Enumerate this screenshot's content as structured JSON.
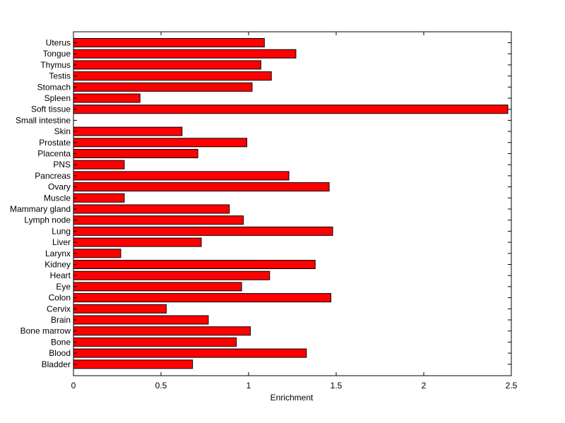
{
  "chart_data": {
    "type": "bar",
    "orientation": "horizontal",
    "title": "",
    "xlabel": "Enrichment",
    "ylabel": "",
    "xlim": [
      0,
      2.5
    ],
    "xticks": [
      0,
      0.5,
      1,
      1.5,
      2,
      2.5
    ],
    "xtick_labels": [
      "0",
      "0.5",
      "1",
      "1.5",
      "2",
      "2.5"
    ],
    "grid": false,
    "bar_color": "#ff0000",
    "edge_color": "#000000",
    "categories": [
      "Uterus",
      "Tongue",
      "Thymus",
      "Testis",
      "Stomach",
      "Spleen",
      "Soft tissue",
      "Small intestine",
      "Skin",
      "Prostate",
      "Placenta",
      "PNS",
      "Pancreas",
      "Ovary",
      "Muscle",
      "Mammary gland",
      "Lymph node",
      "Lung",
      "Liver",
      "Larynx",
      "Kidney",
      "Heart",
      "Eye",
      "Colon",
      "Cervix",
      "Brain",
      "Bone marrow",
      "Bone",
      "Blood",
      "Bladder"
    ],
    "values": [
      1.09,
      1.27,
      1.07,
      1.13,
      1.02,
      0.38,
      2.48,
      0.0,
      0.62,
      0.99,
      0.71,
      0.29,
      1.23,
      1.46,
      0.29,
      0.89,
      0.97,
      1.48,
      0.73,
      0.27,
      1.38,
      1.12,
      0.96,
      1.47,
      0.53,
      0.77,
      1.01,
      0.93,
      1.33,
      0.68
    ]
  }
}
